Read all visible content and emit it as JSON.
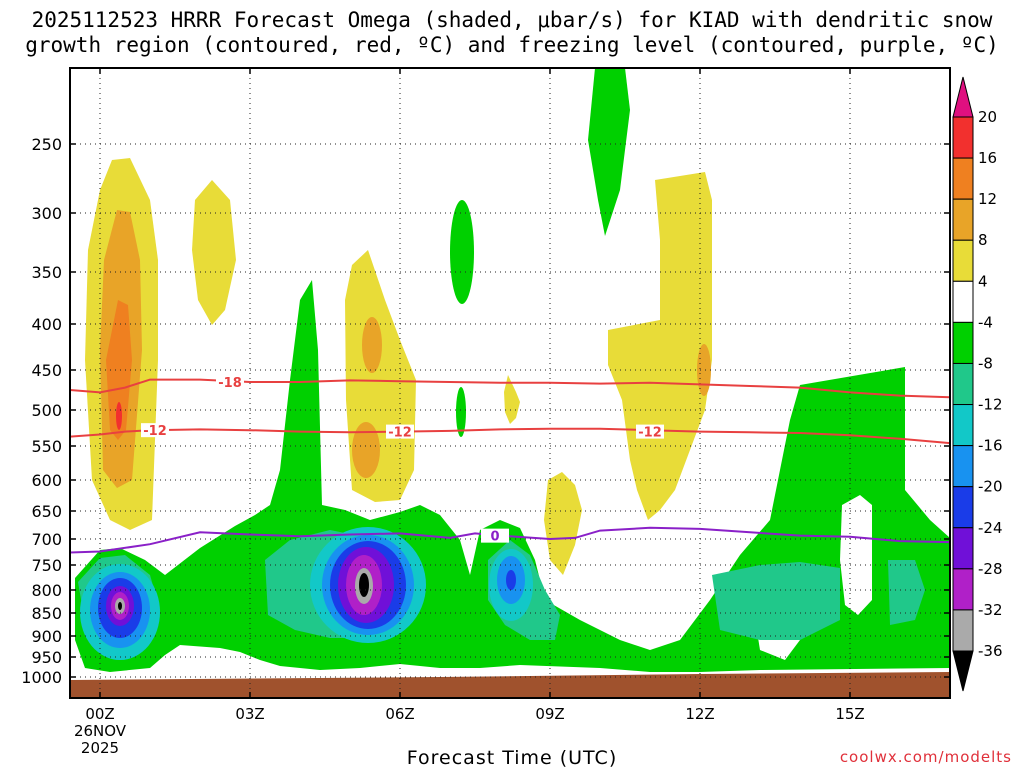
{
  "chart_data": {
    "type": "heatmap",
    "title_line1": "2025112523 HRRR Forecast Omega (shaded, μbar/s) for KIAD with dendritic snow",
    "title_line2": "growth region (contoured, red, ºC) and freezing level (contoured, purple, ºC)",
    "xlabel": "Forecast Time (UTC)",
    "credit": "coolwx.com/modelts",
    "y_axis": {
      "unit": "hPa",
      "range": [
        1020,
        190
      ],
      "ticks": [
        250,
        300,
        350,
        400,
        450,
        500,
        550,
        600,
        650,
        700,
        750,
        800,
        850,
        900,
        950,
        1000
      ]
    },
    "x_axis": {
      "unit": "forecast hour",
      "range": [
        -0.6,
        17
      ],
      "ticks": [
        {
          "hour": 0,
          "label": "00Z",
          "sub": [
            "26NOV",
            "2025"
          ]
        },
        {
          "hour": 3,
          "label": "03Z",
          "sub": []
        },
        {
          "hour": 6,
          "label": "06Z",
          "sub": []
        },
        {
          "hour": 9,
          "label": "09Z",
          "sub": []
        },
        {
          "hour": 12,
          "label": "12Z",
          "sub": []
        },
        {
          "hour": 15,
          "label": "15Z",
          "sub": []
        }
      ]
    },
    "colorbar": {
      "labels": [
        "20",
        "16",
        "12",
        "8",
        "4",
        "-4",
        "-8",
        "-12",
        "-16",
        "-20",
        "-24",
        "-28",
        "-32",
        "-36"
      ],
      "levels": [
        {
          "range": "20 to 16",
          "color": "#f2302e"
        },
        {
          "range": "16 to 12",
          "color": "#ef8020"
        },
        {
          "range": "12 to 8",
          "color": "#e8a428"
        },
        {
          "range": "8 to 4",
          "color": "#e8dc38"
        },
        {
          "range": "4 to -4",
          "color": "#ffffff"
        },
        {
          "range": "-4 to -8",
          "color": "#00d000"
        },
        {
          "range": "-8 to -12",
          "color": "#20c88a"
        },
        {
          "range": "-12 to -16",
          "color": "#12c8c8"
        },
        {
          "range": "-16 to -20",
          "color": "#1892f0"
        },
        {
          "range": "-20 to -24",
          "color": "#1a3ce8"
        },
        {
          "range": "-24 to -28",
          "color": "#7010d8"
        },
        {
          "range": "-28 to -32",
          "color": "#b020c8"
        },
        {
          "range": "-32 to -36",
          "color": "#aaaaaa"
        }
      ],
      "over_color": "#e01080",
      "under_color": "#000000"
    },
    "terrain_color": "#a0522d",
    "contours": [
      {
        "name": "-18 C isotherm",
        "color": "#e84040",
        "label": "-18",
        "label_at": [
          [
            2.6,
            465
          ]
        ],
        "points": [
          [
            -0.6,
            475
          ],
          [
            0,
            478
          ],
          [
            0.5,
            472
          ],
          [
            1,
            462
          ],
          [
            2,
            462
          ],
          [
            3,
            465
          ],
          [
            4,
            465
          ],
          [
            5,
            463
          ],
          [
            6,
            464
          ],
          [
            7,
            465
          ],
          [
            8,
            466
          ],
          [
            9,
            466
          ],
          [
            10,
            467
          ],
          [
            11,
            466
          ],
          [
            12,
            468
          ],
          [
            13,
            470
          ],
          [
            14,
            472
          ],
          [
            15,
            478
          ],
          [
            16,
            482
          ],
          [
            17,
            484
          ]
        ]
      },
      {
        "name": "-12 C isotherm",
        "color": "#e84040",
        "label": "-12",
        "label_at": [
          [
            1.1,
            528
          ],
          [
            6.0,
            530
          ],
          [
            11.0,
            530
          ]
        ],
        "points": [
          [
            -0.6,
            537
          ],
          [
            0,
            534
          ],
          [
            0.5,
            530
          ],
          [
            1,
            528
          ],
          [
            2,
            527
          ],
          [
            3,
            528
          ],
          [
            4,
            530
          ],
          [
            5,
            531
          ],
          [
            6,
            530
          ],
          [
            7,
            529
          ],
          [
            8,
            527
          ],
          [
            9,
            526
          ],
          [
            10,
            526
          ],
          [
            11,
            528
          ],
          [
            12,
            530
          ],
          [
            13,
            531
          ],
          [
            14,
            532
          ],
          [
            15,
            535
          ],
          [
            16,
            540
          ],
          [
            17,
            546
          ]
        ]
      },
      {
        "name": "0 C freezing level",
        "color": "#8a20c8",
        "label": "0",
        "label_at": [
          [
            7.9,
            694
          ]
        ],
        "points": [
          [
            -0.6,
            726
          ],
          [
            0,
            724
          ],
          [
            1,
            710
          ],
          [
            2,
            688
          ],
          [
            3,
            692
          ],
          [
            4,
            695
          ],
          [
            5,
            692
          ],
          [
            6,
            690
          ],
          [
            7,
            698
          ],
          [
            7.5,
            690
          ],
          [
            8,
            694
          ],
          [
            9,
            700
          ],
          [
            9.5,
            698
          ],
          [
            10,
            685
          ],
          [
            11,
            680
          ],
          [
            12,
            682
          ],
          [
            13,
            688
          ],
          [
            14,
            694
          ],
          [
            15,
            696
          ],
          [
            16,
            704
          ],
          [
            17,
            706
          ]
        ]
      }
    ]
  }
}
